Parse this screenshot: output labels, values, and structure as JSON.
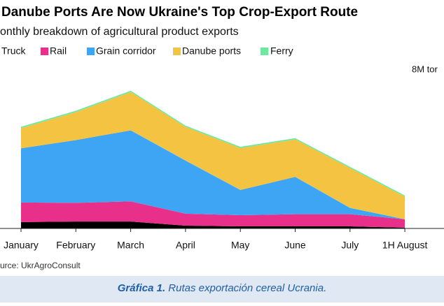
{
  "chart_data": {
    "type": "stacked_area",
    "title": "Danube Ports Are Now Ukraine's Top Crop-Export Route",
    "subtitle": "onthly breakdown of agricultural product exports",
    "source": "urce: UkrAgroConsult",
    "caption_number": "Gráfica 1.",
    "caption": "Rutas exportación cereal Ucrania.",
    "categories": [
      "January",
      "February",
      "March",
      "April",
      "May",
      "June",
      "July",
      "1H August"
    ],
    "series": [
      {
        "name": "Truck",
        "color": "#000000",
        "values": [
          0.34,
          0.37,
          0.37,
          0.15,
          0.11,
          0.11,
          0.11,
          0.04
        ]
      },
      {
        "name": "Rail",
        "color": "#e8308a",
        "values": [
          1.05,
          1.0,
          1.08,
          0.64,
          0.6,
          0.65,
          0.65,
          0.45
        ]
      },
      {
        "name": "Grain corridor",
        "color": "#3da5f4",
        "values": [
          2.9,
          3.36,
          3.8,
          2.84,
          1.35,
          2.0,
          0.34,
          0
        ]
      },
      {
        "name": "Danube ports",
        "color": "#f5c342",
        "values": [
          1.08,
          1.5,
          2.05,
          1.8,
          2.24,
          2.0,
          2.13,
          1.2
        ]
      },
      {
        "name": "Ferry",
        "color": "#6ee8a0",
        "values": [
          0.07,
          0.07,
          0.07,
          0.07,
          0.07,
          0.07,
          0.07,
          0.07
        ]
      }
    ],
    "ylim": [
      0,
      8
    ],
    "yticks": [
      {
        "value": 8,
        "label": "8M tor"
      }
    ]
  }
}
